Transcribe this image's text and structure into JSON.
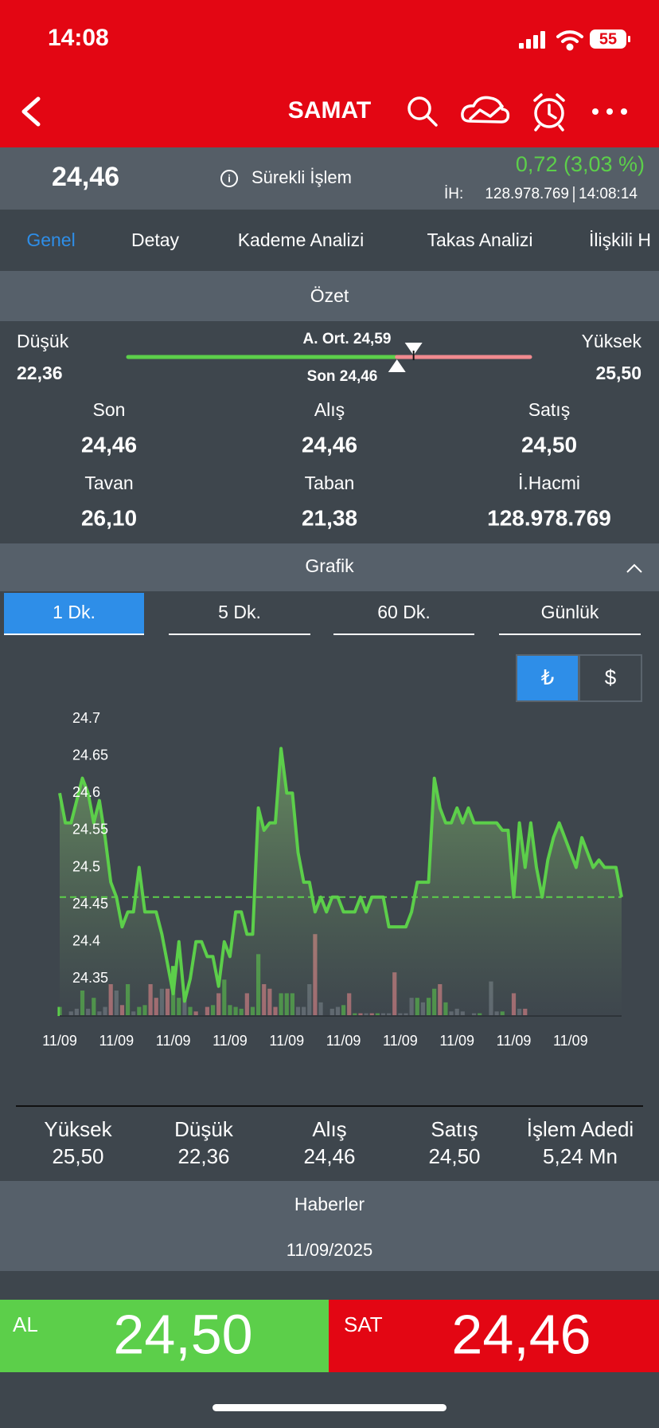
{
  "status_bar": {
    "time": "14:08",
    "battery": "55"
  },
  "nav": {
    "title": "SAMAT"
  },
  "quote": {
    "price": "24,46",
    "session": "Sürekli İşlem",
    "change": "0,72 (3,03 %)",
    "volume_label": "İH:",
    "volume": "128.978.769",
    "time": "14:08:14"
  },
  "tabs": {
    "items": [
      "Genel",
      "Detay",
      "Kademe Analizi",
      "Takas Analizi",
      "İlişkili H"
    ],
    "active": 0
  },
  "summary": {
    "title": "Özet",
    "low_label": "Düşük",
    "low": "22,36",
    "high_label": "Yüksek",
    "high": "25,50",
    "avg": "A. Ort. 24,59",
    "last": "Son 24,46",
    "cells": [
      {
        "label": "Son",
        "value": "24,46"
      },
      {
        "label": "Alış",
        "value": "24,46"
      },
      {
        "label": "Satış",
        "value": "24,50"
      },
      {
        "label": "Tavan",
        "value": "26,10"
      },
      {
        "label": "Taban",
        "value": "21,38"
      },
      {
        "label": "İ.Hacmi",
        "value": "128.978.769"
      }
    ]
  },
  "chart_section": {
    "title": "Grafik",
    "intervals": [
      "1 Dk.",
      "5 Dk.",
      "60 Dk.",
      "Günlük"
    ],
    "active_interval": 0,
    "currencies": [
      "₺",
      "$"
    ],
    "active_currency": 0
  },
  "chart_data": {
    "type": "area",
    "color": "#5ccf4a",
    "categories": [
      "11/09",
      null,
      null,
      null,
      null,
      null,
      null,
      null,
      null,
      null,
      "11/09",
      null,
      null,
      null,
      null,
      null,
      null,
      null,
      null,
      null,
      "11/09",
      null,
      null,
      null,
      null,
      null,
      null,
      null,
      null,
      null,
      "11/09",
      null,
      null,
      null,
      null,
      null,
      null,
      null,
      null,
      null,
      "11/09",
      null,
      null,
      null,
      null,
      null,
      null,
      null,
      null,
      null,
      "11/09",
      null,
      null,
      null,
      null,
      null,
      null,
      null,
      null,
      null,
      "11/09",
      null,
      null,
      null,
      null,
      null,
      null,
      null,
      null,
      null,
      "11/09",
      null,
      null,
      null,
      null,
      null,
      null,
      null,
      null,
      null,
      "11/09",
      null,
      null,
      null,
      null,
      null,
      null,
      null,
      null,
      null,
      "11/09",
      null,
      null,
      null,
      null,
      null,
      null,
      null,
      null,
      null
    ],
    "values": [
      24.6,
      24.56,
      24.56,
      24.59,
      24.62,
      24.6,
      24.56,
      24.59,
      24.54,
      24.48,
      24.46,
      24.42,
      24.44,
      24.44,
      24.5,
      24.44,
      24.44,
      24.44,
      24.41,
      24.37,
      24.33,
      24.4,
      24.32,
      24.35,
      24.4,
      24.4,
      24.38,
      24.38,
      24.34,
      24.4,
      24.38,
      24.44,
      24.44,
      24.41,
      24.41,
      24.58,
      24.55,
      24.56,
      24.56,
      24.66,
      24.6,
      24.6,
      24.52,
      24.48,
      24.48,
      24.44,
      24.46,
      24.44,
      24.46,
      24.46,
      24.44,
      24.44,
      24.44,
      24.46,
      24.44,
      24.46,
      24.46,
      24.46,
      24.42,
      24.42,
      24.42,
      24.42,
      24.44,
      24.48,
      24.48,
      24.48,
      24.62,
      24.58,
      24.56,
      24.56,
      24.58,
      24.56,
      24.58,
      24.56,
      24.56,
      24.56,
      24.56,
      24.56,
      24.55,
      24.55,
      24.46,
      24.56,
      24.5,
      24.56,
      24.5,
      24.46,
      24.51,
      24.54,
      24.56,
      24.54,
      24.52,
      24.5,
      24.54,
      24.52,
      24.5,
      24.51,
      24.5,
      24.5,
      24.5,
      24.46
    ],
    "reference_value": 24.46,
    "ylim": [
      24.3,
      24.7
    ],
    "yticks": [
      24.35,
      24.4,
      24.45,
      24.5,
      24.55,
      24.6,
      24.65,
      24.7
    ],
    "grid": false
  },
  "volume": {
    "values": [
      10,
      null,
      5,
      8,
      28,
      8,
      20,
      5,
      10,
      35,
      28,
      12,
      35,
      5,
      10,
      12,
      35,
      20,
      30,
      30,
      55,
      20,
      25,
      10,
      5,
      null,
      10,
      12,
      25,
      40,
      12,
      10,
      8,
      25,
      10,
      68,
      35,
      30,
      10,
      25,
      25,
      25,
      10,
      10,
      35,
      90,
      15,
      null,
      8,
      10,
      12,
      25,
      3,
      3,
      3,
      3,
      3,
      3,
      3,
      48,
      3,
      3,
      20,
      20,
      15,
      20,
      30,
      35,
      15,
      5,
      8,
      5,
      null,
      3,
      3,
      null,
      38,
      5,
      5,
      null,
      25,
      8,
      8,
      null,
      null,
      null,
      null,
      null,
      null,
      null,
      null,
      null,
      null,
      null,
      null,
      null,
      null,
      null,
      null,
      null
    ],
    "colors": [
      "#5ccf4a",
      null,
      "#7b848c",
      "#7b848c",
      "#5ccf4a",
      "#7b848c",
      "#5ccf4a",
      "#7b848c",
      "#7b848c",
      "#f08a8f",
      "#7b848c",
      "#f08a8f",
      "#5ccf4a",
      "#7b848c",
      "#5ccf4a",
      "#5ccf4a",
      "#f08a8f",
      "#f08a8f",
      "#7b848c",
      "#f08a8f",
      "#5ccf4a",
      "#5ccf4a",
      "#7b848c",
      "#5ccf4a",
      "#f08a8f",
      null,
      "#f08a8f",
      "#5ccf4a",
      "#f08a8f",
      "#5ccf4a",
      "#5ccf4a",
      "#5ccf4a",
      "#5ccf4a",
      "#f08a8f",
      "#5ccf4a",
      "#5ccf4a",
      "#f08a8f",
      "#f08a8f",
      "#f08a8f",
      "#5ccf4a",
      "#5ccf4a",
      "#5ccf4a",
      "#7b848c",
      "#7b848c",
      "#7b848c",
      "#f08a8f",
      "#7b848c",
      null,
      "#7b848c",
      "#7b848c",
      "#5ccf4a",
      "#f08a8f",
      "#5ccf4a",
      "#f08a8f",
      "#7b848c",
      "#f08a8f",
      "#5ccf4a",
      "#7b848c",
      "#7b848c",
      "#f08a8f",
      "#7b848c",
      "#7b848c",
      "#7b848c",
      "#5ccf4a",
      "#7b848c",
      "#5ccf4a",
      "#5ccf4a",
      "#f08a8f",
      "#5ccf4a",
      "#7b848c",
      "#7b848c",
      "#7b848c",
      null,
      "#7b848c",
      "#5ccf4a",
      null,
      "#7b848c",
      "#7b848c",
      "#5ccf4a",
      null,
      "#f08a8f",
      "#7b848c",
      "#f08a8f",
      null,
      null,
      null,
      null,
      null,
      null,
      null,
      null,
      null,
      null,
      null,
      null,
      null,
      null,
      null,
      null,
      null
    ]
  },
  "stats": [
    {
      "label": "Yüksek",
      "value": "25,50"
    },
    {
      "label": "Düşük",
      "value": "22,36"
    },
    {
      "label": "Alış",
      "value": "24,46"
    },
    {
      "label": "Satış",
      "value": "24,50"
    },
    {
      "label": "İşlem Adedi",
      "value": "5,24 Mn"
    }
  ],
  "news": {
    "title": "Haberler",
    "date": "11/09/2025"
  },
  "trade": {
    "buy_label": "AL",
    "buy": "24,50",
    "sell_label": "SAT",
    "sell": "24,46"
  }
}
